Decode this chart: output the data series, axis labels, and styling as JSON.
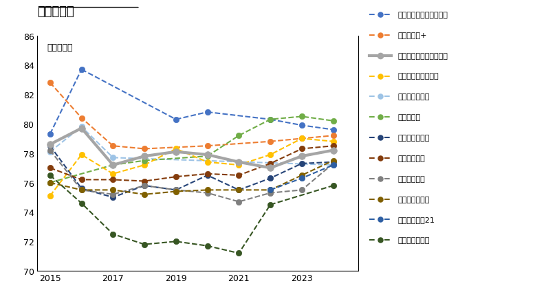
{
  "title": "マンション",
  "subtitle": "顧客満足度",
  "years": [
    2015,
    2016,
    2017,
    2018,
    2019,
    2020,
    2021,
    2022,
    2023,
    2024
  ],
  "ylim": [
    70,
    86
  ],
  "yticks": [
    70,
    72,
    74,
    76,
    78,
    80,
    82,
    84,
    86
  ],
  "xticks": [
    2015,
    2017,
    2019,
    2021,
    2023
  ],
  "series": [
    {
      "label": "住友林業ホームサービス",
      "color": "#4472C4",
      "style": "dashed",
      "linewidth": 1.5,
      "markersize": 6,
      "data": [
        79.3,
        83.7,
        null,
        null,
        80.3,
        80.8,
        null,
        80.3,
        79.9,
        79.6
      ]
    },
    {
      "label": "野村の仲介+",
      "color": "#ED7D31",
      "style": "dashed",
      "linewidth": 1.5,
      "markersize": 6,
      "data": [
        82.8,
        80.4,
        78.5,
        78.3,
        null,
        78.5,
        null,
        78.8,
        79.0,
        79.2
      ]
    },
    {
      "label": "三井住友トラスト不動産",
      "color": "#A5A5A5",
      "style": "solid",
      "linewidth": 3.0,
      "markersize": 7,
      "data": [
        78.6,
        79.7,
        77.2,
        77.8,
        78.1,
        77.9,
        77.4,
        77.0,
        77.8,
        78.2
      ]
    },
    {
      "label": "大成有楽不動産販売",
      "color": "#FFC000",
      "style": "dashed",
      "linewidth": 1.5,
      "markersize": 6,
      "data": [
        75.1,
        77.9,
        76.6,
        77.2,
        78.3,
        77.4,
        77.2,
        77.9,
        79.0,
        78.8
      ]
    },
    {
      "label": "大京穴吹不動産",
      "color": "#9DC3E6",
      "style": "dashed",
      "linewidth": 1.5,
      "markersize": 6,
      "data": [
        78.1,
        79.8,
        77.7,
        null,
        null,
        null,
        null,
        null,
        null,
        77.2
      ]
    },
    {
      "label": "近鉄の仲介",
      "color": "#70AD47",
      "style": "dashed",
      "linewidth": 1.5,
      "markersize": 6,
      "data": [
        76.0,
        null,
        77.2,
        77.5,
        null,
        77.8,
        79.2,
        80.3,
        80.5,
        80.2
      ]
    },
    {
      "label": "三井のリハウス",
      "color": "#264478",
      "style": "dashed",
      "linewidth": 1.5,
      "markersize": 6,
      "data": [
        78.5,
        75.6,
        75.0,
        75.8,
        75.5,
        76.5,
        75.5,
        76.3,
        77.3,
        77.4
      ]
    },
    {
      "label": "東急リバブル",
      "color": "#843C0C",
      "style": "dashed",
      "linewidth": 1.5,
      "markersize": 6,
      "data": [
        77.0,
        76.2,
        76.2,
        76.1,
        76.4,
        76.6,
        76.5,
        77.3,
        78.3,
        78.5
      ]
    },
    {
      "label": "長谷工の仲介",
      "color": "#7F7F7F",
      "style": "dashed",
      "linewidth": 1.5,
      "markersize": 6,
      "data": [
        78.2,
        75.5,
        75.2,
        75.8,
        75.5,
        75.3,
        74.7,
        75.3,
        75.5,
        77.3
      ]
    },
    {
      "label": "住友不動産販売",
      "color": "#806000",
      "style": "dashed",
      "linewidth": 1.5,
      "markersize": 6,
      "data": [
        76.0,
        75.5,
        75.5,
        75.2,
        75.4,
        75.5,
        75.5,
        75.5,
        76.5,
        77.5
      ]
    },
    {
      "label": "センチュリー21",
      "color": "#2E5FA3",
      "style": "dashed",
      "linewidth": 1.5,
      "markersize": 6,
      "data": [
        null,
        null,
        null,
        null,
        null,
        null,
        null,
        75.5,
        76.3,
        77.2
      ]
    },
    {
      "label": "福屋不動産販売",
      "color": "#375623",
      "style": "dashed",
      "linewidth": 1.5,
      "markersize": 6,
      "data": [
        76.5,
        74.6,
        72.5,
        71.8,
        72.0,
        71.7,
        71.2,
        74.5,
        null,
        75.8
      ]
    }
  ],
  "background_color": "#FFFFFF"
}
